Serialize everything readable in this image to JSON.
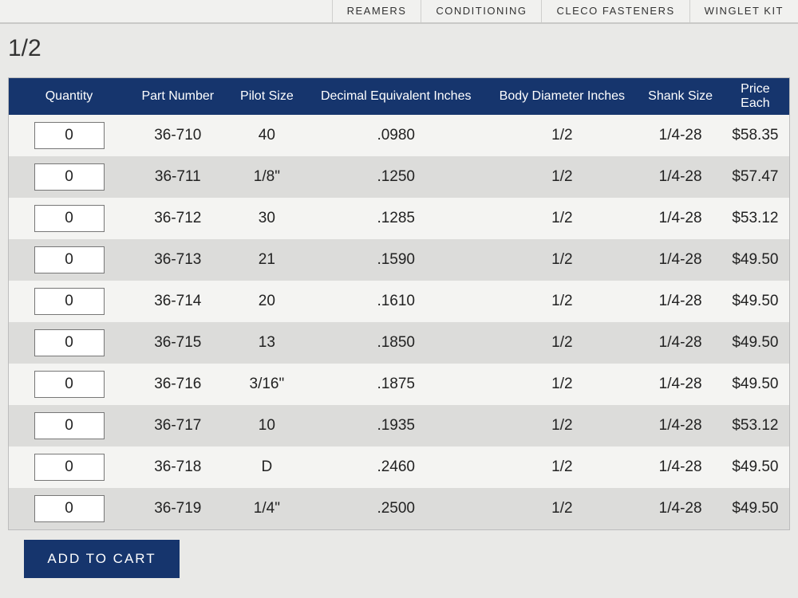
{
  "nav": {
    "tabs": [
      "REAMERS",
      "CONDITIONING",
      "CLECO FASTENERS",
      "WINGLET KIT"
    ]
  },
  "header": {
    "title": "1/2"
  },
  "table": {
    "columns": [
      "Quantity",
      "Part Number",
      "Pilot Size",
      "Decimal Equivalent Inches",
      "Body Diameter Inches",
      "Shank Size",
      "Price Each"
    ],
    "rows": [
      [
        "0",
        "36-710",
        "40",
        ".0980",
        "1/2",
        "1/4-28",
        "$58.35"
      ],
      [
        "0",
        "36-711",
        "1/8\"",
        ".1250",
        "1/2",
        "1/4-28",
        "$57.47"
      ],
      [
        "0",
        "36-712",
        "30",
        ".1285",
        "1/2",
        "1/4-28",
        "$53.12"
      ],
      [
        "0",
        "36-713",
        "21",
        ".1590",
        "1/2",
        "1/4-28",
        "$49.50"
      ],
      [
        "0",
        "36-714",
        "20",
        ".1610",
        "1/2",
        "1/4-28",
        "$49.50"
      ],
      [
        "0",
        "36-715",
        "13",
        ".1850",
        "1/2",
        "1/4-28",
        "$49.50"
      ],
      [
        "0",
        "36-716",
        "3/16\"",
        ".1875",
        "1/2",
        "1/4-28",
        "$49.50"
      ],
      [
        "0",
        "36-717",
        "10",
        ".1935",
        "1/2",
        "1/4-28",
        "$53.12"
      ],
      [
        "0",
        "36-718",
        "D",
        ".2460",
        "1/2",
        "1/4-28",
        "$49.50"
      ],
      [
        "0",
        "36-719",
        "1/4\"",
        ".2500",
        "1/2",
        "1/4-28",
        "$49.50"
      ]
    ]
  },
  "button": {
    "label": "ADD TO CART"
  }
}
